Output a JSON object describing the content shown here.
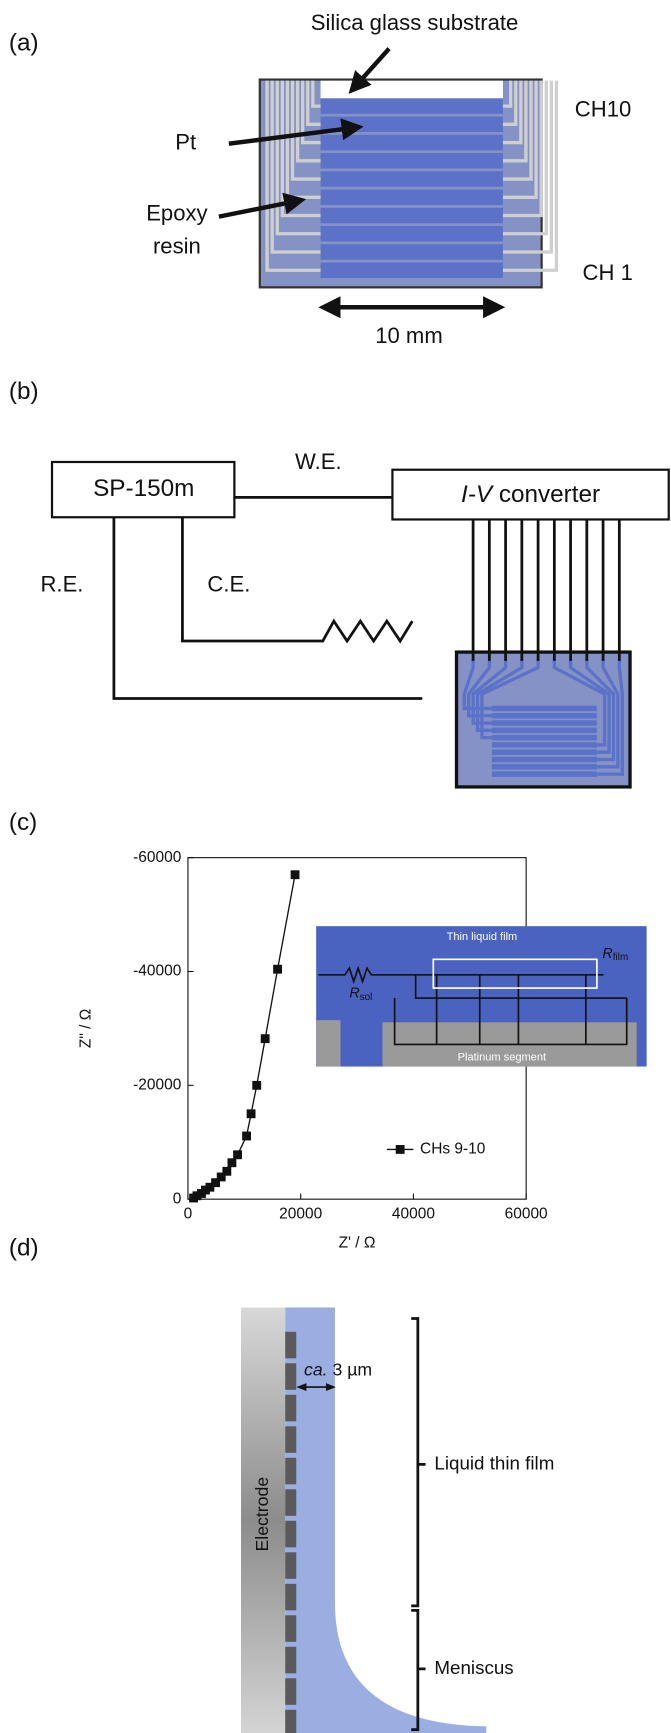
{
  "panel_a": {
    "label": "(a)",
    "substrate": "Silica glass substrate",
    "pt": "Pt",
    "epoxy": [
      "Epoxy",
      "resin"
    ],
    "ch10": "CH10",
    "ch1": "CH 1",
    "scale": "10 mm"
  },
  "panel_b": {
    "label": "(b)",
    "potentiostat": "SP-150m",
    "we": "W.E.",
    "re": "R.E.",
    "ce": "C.E.",
    "converter": {
      "italic": "I-V",
      "rest": "converter"
    }
  },
  "chart_data": {
    "type": "scatter",
    "panel_label": "(c)",
    "x_label": "Z' / Ω",
    "y_label": "Z\" / Ω",
    "xlim": [
      0,
      60000
    ],
    "xticks": [
      0,
      20000,
      40000,
      60000
    ],
    "ylim": [
      0,
      -60000
    ],
    "yticks": [
      0,
      -20000,
      -40000,
      -60000
    ],
    "legend": "lower right",
    "x": [
      1000,
      1600,
      2400,
      3100,
      3900,
      4900,
      5900,
      6900,
      7800,
      8800,
      10400,
      11200,
      12200,
      13700,
      15900,
      19000
    ],
    "series": [
      {
        "name": "CHs 9-10",
        "color": "#111111",
        "values": [
          -200,
          -600,
          -1000,
          -1600,
          -2100,
          -2900,
          -3900,
          -4900,
          -6400,
          -7800,
          -11100,
          -15000,
          -20000,
          -28200,
          -40400,
          -57000
        ]
      }
    ],
    "inset": {
      "film": "Thin liquid film",
      "segment": "Platinum segment",
      "r_sol": {
        "symbol": "R",
        "subscript": "sol"
      },
      "r_film": {
        "symbol": "R",
        "subscript": "film"
      }
    }
  },
  "panel_d": {
    "label": "(d)",
    "thickness": {
      "italic": "ca.",
      "rest": "3 µm"
    },
    "electrode": "Electrode",
    "film": "Liquid thin film",
    "meniscus": "Meniscus"
  }
}
